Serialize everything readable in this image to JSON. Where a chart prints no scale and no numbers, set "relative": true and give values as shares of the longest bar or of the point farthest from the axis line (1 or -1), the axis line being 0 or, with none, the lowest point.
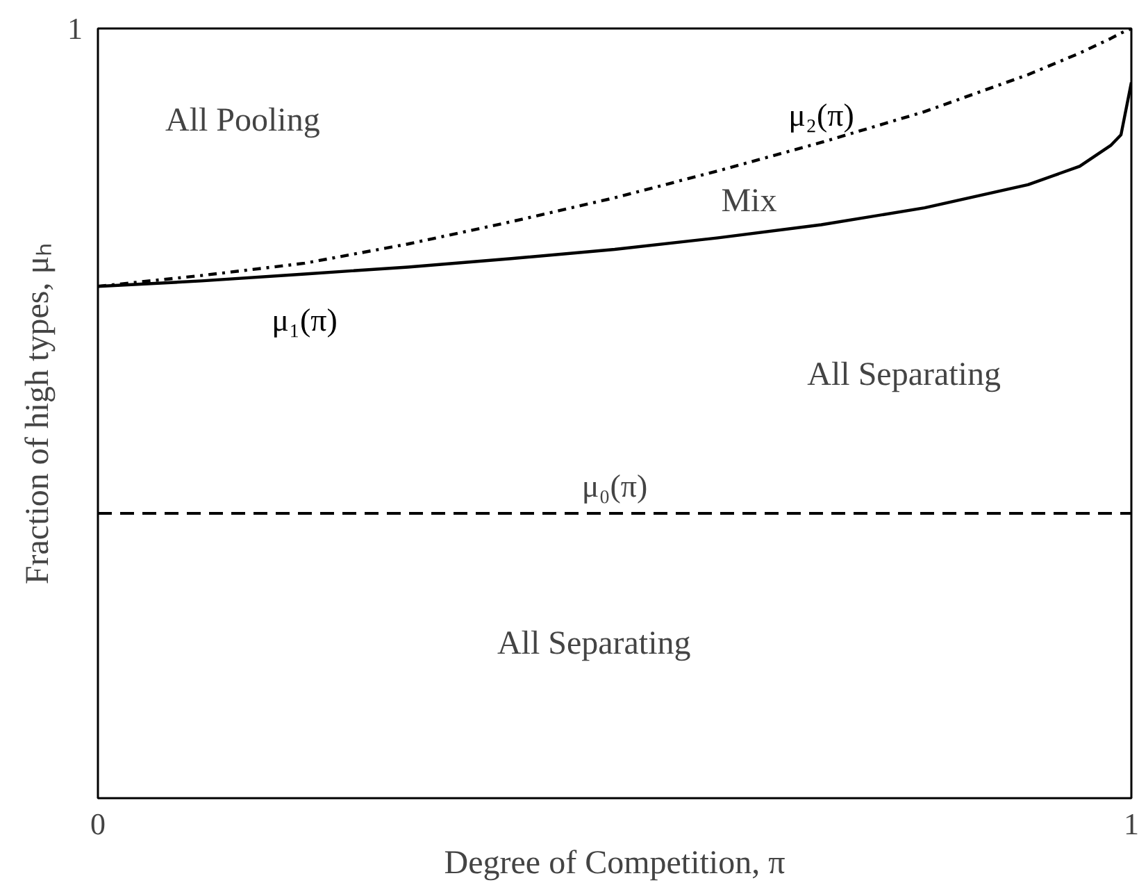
{
  "chart_data": {
    "type": "line",
    "xlabel": "Degree of Competition, π",
    "ylabel": "Fraction of high types, μₕ",
    "xlim": [
      0,
      1
    ],
    "xticks": [
      0,
      1
    ],
    "relative": true,
    "marker": "none",
    "x": [
      0,
      0.1,
      0.2,
      0.3,
      0.4,
      0.5,
      0.6,
      0.7,
      0.8,
      0.9,
      0.95,
      0.98,
      0.99,
      1.0
    ],
    "series": [
      {
        "name": "μ₁(π)",
        "color": "#000000",
        "line_style": "solid",
        "values": [
          0.665,
          0.672,
          0.681,
          0.69,
          0.701,
          0.713,
          0.728,
          0.745,
          0.767,
          0.797,
          0.821,
          0.848,
          0.862,
          0.93
        ]
      },
      {
        "name": "μ₂(π)",
        "color": "#000000",
        "line_style": "dashdot",
        "values": [
          0.665,
          0.679,
          0.695,
          0.72,
          0.749,
          0.78,
          0.815,
          0.852,
          0.892,
          0.94,
          0.968,
          0.987,
          0.994,
          1.0
        ]
      }
    ],
    "ref_lines": [
      {
        "axis": "y",
        "value": 0.37,
        "label": "μ₀(π)",
        "color": "#000000",
        "line_style": "dashed"
      }
    ],
    "annotations": [
      "1",
      "All Pooling",
      "Mix",
      "All Separating",
      "All Separating"
    ]
  }
}
